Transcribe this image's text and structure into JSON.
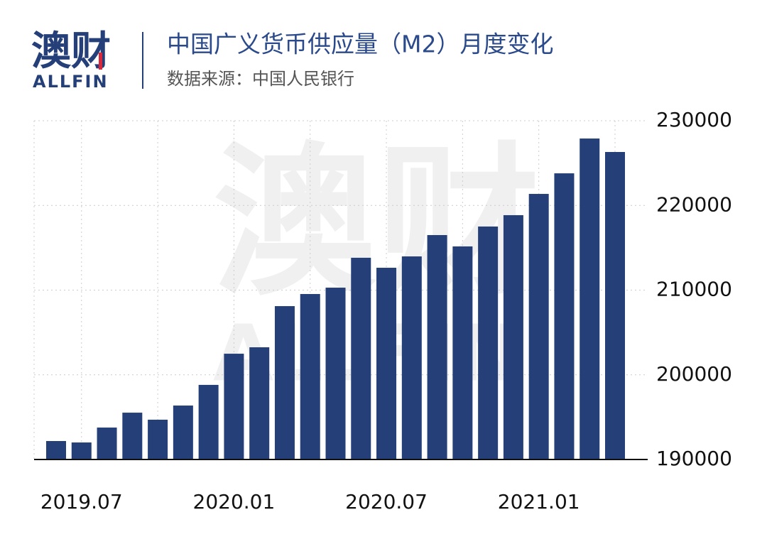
{
  "brand": {
    "logo": "澳财",
    "logo_sub": "ALLFIN"
  },
  "chart_data": {
    "type": "bar",
    "title": "中国广义货币供应量（M2）月度变化",
    "subtitle": "数据来源：中国人民银行",
    "categories": [
      null,
      "2019.07",
      null,
      null,
      null,
      null,
      null,
      "2020.01",
      null,
      null,
      null,
      null,
      null,
      "2020.07",
      null,
      null,
      null,
      null,
      null,
      "2021.01",
      null,
      null,
      null
    ],
    "values": [
      192180,
      192010,
      193770,
      195530,
      194700,
      196370,
      198810,
      202490,
      203250,
      208110,
      209540,
      210290,
      213820,
      212640,
      213980,
      216500,
      215160,
      217510,
      218850,
      221360,
      223790,
      227900,
      226310
    ],
    "color": "#253f78",
    "ylim": [
      190000,
      230000
    ],
    "yticks": [
      190000,
      200000,
      210000,
      220000,
      230000
    ],
    "grid": true
  }
}
